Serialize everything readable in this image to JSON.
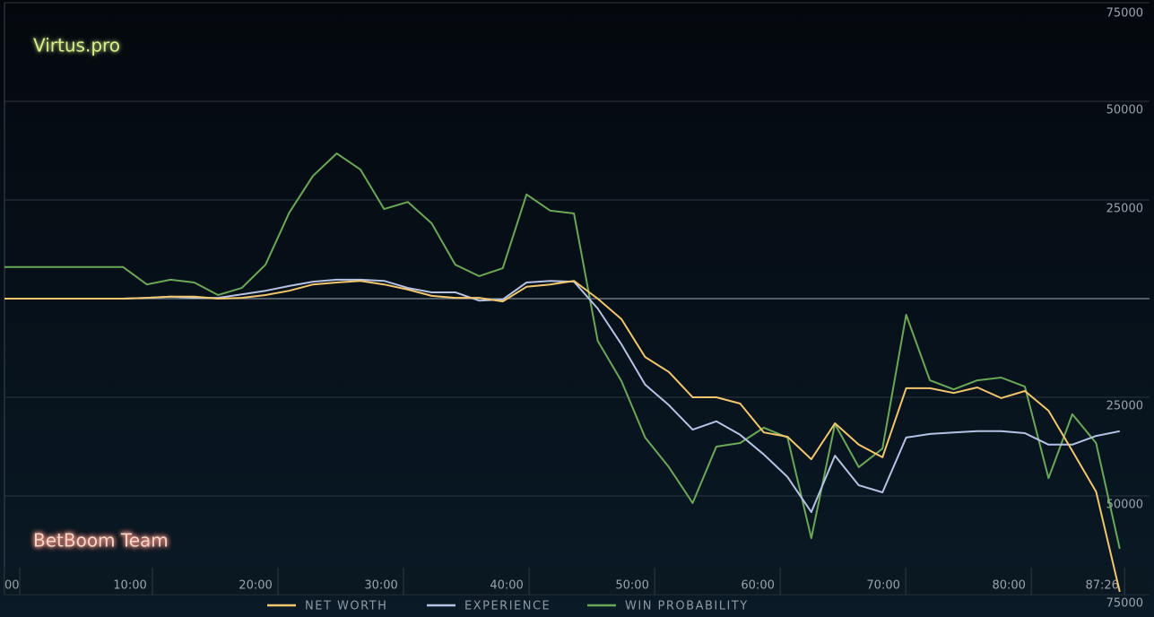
{
  "chart_data": {
    "type": "line",
    "teams": {
      "top": "Virtus.pro",
      "bottom": "BetBoom Team"
    },
    "x": [
      0,
      1.89,
      3.78,
      5.67,
      7.56,
      9.45,
      11.34,
      13.23,
      15.12,
      17.01,
      18.9,
      20.79,
      22.68,
      24.57,
      26.46,
      28.35,
      30.24,
      32.13,
      34.02,
      35.91,
      37.8,
      39.69,
      41.58,
      43.47,
      45.36,
      47.25,
      49.14,
      51.03,
      52.92,
      54.81,
      56.7,
      58.59,
      60.48,
      62.37,
      64.26,
      66.15,
      68.04,
      69.93,
      71.82,
      73.71,
      75.6,
      77.49,
      79.38,
      81.27,
      83.16,
      85.05,
      86.94,
      88.83
    ],
    "series": [
      {
        "name": "NET WORTH",
        "color": "#f2c66d",
        "values": [
          0,
          0,
          0,
          0,
          0,
          0,
          200,
          500,
          500,
          0,
          200,
          900,
          2000,
          3600,
          4100,
          4500,
          3600,
          2300,
          700,
          200,
          200,
          -700,
          3000,
          3600,
          4500,
          0,
          -5200,
          -14800,
          -18600,
          -25000,
          -25000,
          -26600,
          -33900,
          -35000,
          -40700,
          -31600,
          -37000,
          -40200,
          -22700,
          -22700,
          -23900,
          -22500,
          -25200,
          -23400,
          -28400,
          -38600,
          -48900,
          -74300
        ]
      },
      {
        "name": "EXPERIENCE",
        "color": "#b4c2e4",
        "values": [
          0,
          0,
          0,
          0,
          0,
          0,
          200,
          500,
          200,
          200,
          1100,
          2000,
          3200,
          4300,
          4800,
          4800,
          4500,
          2700,
          1600,
          1600,
          -500,
          -200,
          4100,
          4500,
          4300,
          -2500,
          -11600,
          -21800,
          -27000,
          -33200,
          -31100,
          -34500,
          -39500,
          -45200,
          -54100,
          -39800,
          -47300,
          -49100,
          -35200,
          -34300,
          -33900,
          -33600,
          -33600,
          -34100,
          -37000,
          -37000,
          -34800,
          -33600
        ]
      },
      {
        "name": "WIN PROBABILITY",
        "color": "#6aa858",
        "values": [
          8000,
          8000,
          8000,
          8000,
          8000,
          8000,
          3600,
          4800,
          4100,
          900,
          2700,
          8600,
          21800,
          31100,
          36800,
          32700,
          22700,
          24500,
          19100,
          8600,
          5700,
          7700,
          26400,
          22300,
          21600,
          -10700,
          -20900,
          -35200,
          -42700,
          -51800,
          -37500,
          -36600,
          -32700,
          -35200,
          -60700,
          -31800,
          -42700,
          -38000,
          -4100,
          -20700,
          -23000,
          -20700,
          -20000,
          -22300,
          -45500,
          -29300,
          -36600,
          -63400
        ]
      }
    ],
    "xlim": [
      0,
      91.2
    ],
    "ylim": [
      -75000,
      75000
    ],
    "xticks": [
      {
        "value": 0,
        "label": "00"
      },
      {
        "value": 10,
        "label": "10:00"
      },
      {
        "value": 20,
        "label": "20:00"
      },
      {
        "value": 30,
        "label": "30:00"
      },
      {
        "value": 40,
        "label": "40:00"
      },
      {
        "value": 50,
        "label": "50:00"
      },
      {
        "value": 60,
        "label": "60:00"
      },
      {
        "value": 70,
        "label": "70:00"
      },
      {
        "value": 80,
        "label": "80:00"
      },
      {
        "value": 87.43,
        "label": "87:26"
      }
    ],
    "yticks": [
      75000,
      50000,
      25000,
      {
        "value": -25000,
        "label": "25000"
      },
      {
        "value": -50000,
        "label": "50000"
      },
      {
        "value": -75000,
        "label": "75000"
      }
    ],
    "grid": true,
    "zero_line": true
  }
}
